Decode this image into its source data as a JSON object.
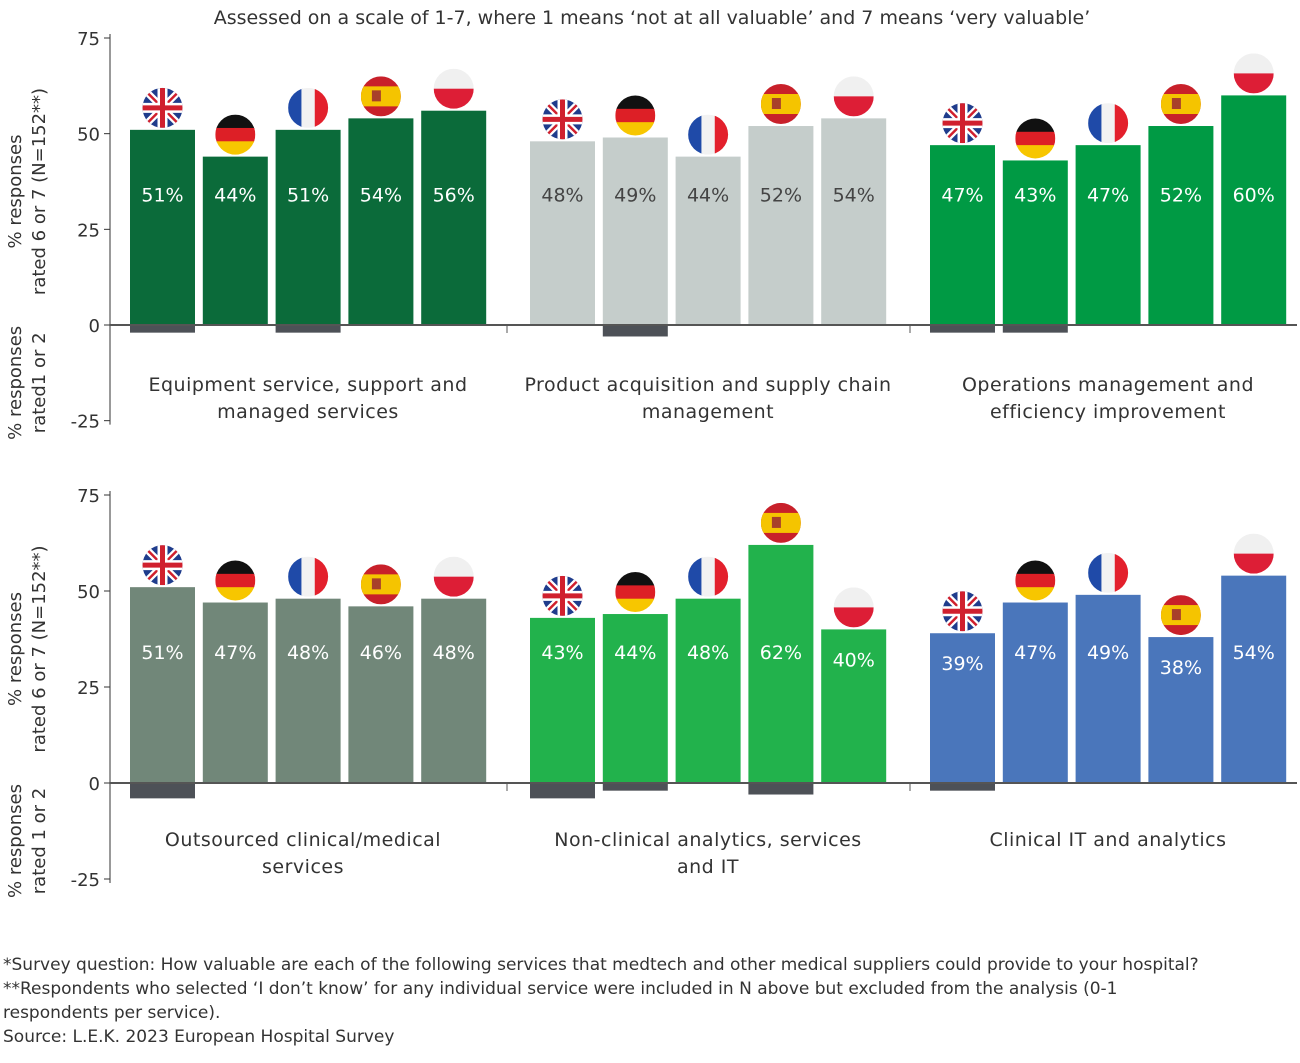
{
  "chart_data": [
    {
      "type": "bar",
      "title": "Assessed on a scale of 1-7, where 1 means ‘not at all valuable’ and 7 means ‘very valuable’",
      "ylabel_positive": "% responses rated 6 or 7 (N=152**)",
      "ylabel_negative": "% responses rated1 or 2",
      "yticks": [
        75,
        50,
        25,
        0,
        -25
      ],
      "ylim": [
        -25,
        75
      ],
      "categories": [
        "UK",
        "Germany",
        "France",
        "Spain",
        "Poland"
      ],
      "flag_icons": [
        "uk-flag-icon",
        "germany-flag-icon",
        "france-flag-icon",
        "spain-flag-icon",
        "poland-flag-icon"
      ],
      "negative_color": "#4d5157",
      "groups": [
        {
          "label": "Equipment service, support and managed services",
          "color": "#0b6b3a",
          "values": [
            51,
            44,
            51,
            54,
            56
          ],
          "labels": [
            "51%",
            "44%",
            "51%",
            "54%",
            "56%"
          ],
          "negative": [
            2,
            0,
            2,
            0,
            0
          ]
        },
        {
          "label": "Product acquisition and supply chain management",
          "color": "#c5cdcb",
          "text_color": "#444",
          "values": [
            48,
            49,
            44,
            52,
            54
          ],
          "labels": [
            "48%",
            "49%",
            "44%",
            "52%",
            "54%"
          ],
          "negative": [
            0,
            3,
            0,
            0,
            0
          ]
        },
        {
          "label": "Operations management and efficiency improvement",
          "color": "#009a44",
          "values": [
            47,
            43,
            47,
            52,
            60
          ],
          "labels": [
            "47%",
            "43%",
            "47%",
            "52%",
            "60%"
          ],
          "negative": [
            2,
            2,
            0,
            0,
            0
          ]
        }
      ]
    },
    {
      "type": "bar",
      "ylabel_positive": "% responses rated 6 or 7 (N=152**)",
      "ylabel_negative": "% responses rated 1 or 2",
      "yticks": [
        75,
        50,
        25,
        0,
        -25
      ],
      "ylim": [
        -25,
        75
      ],
      "categories": [
        "UK",
        "Germany",
        "France",
        "Spain",
        "Poland"
      ],
      "groups": [
        {
          "label": "Outsourced clinical/medical services",
          "color": "#718779",
          "values": [
            51,
            47,
            48,
            46,
            48
          ],
          "labels": [
            "51%",
            "47%",
            "48%",
            "46%",
            "48%"
          ],
          "negative": [
            4,
            0,
            0,
            0,
            0
          ]
        },
        {
          "label": "Non-clinical analytics, services and IT",
          "color": "#22b24c",
          "values": [
            43,
            44,
            48,
            62,
            40
          ],
          "labels": [
            "43%",
            "44%",
            "48%",
            "62%",
            "40%"
          ],
          "negative": [
            4,
            2,
            0,
            3,
            0
          ]
        },
        {
          "label": "Clinical IT and analytics",
          "color": "#4a76bb",
          "values": [
            39,
            47,
            49,
            38,
            54
          ],
          "labels": [
            "39%",
            "47%",
            "49%",
            "38%",
            "54%"
          ],
          "negative": [
            2,
            0,
            0,
            0,
            0
          ]
        }
      ]
    }
  ],
  "footnotes": {
    "survey": "*Survey question: How valuable are each of the following services that medtech and other medical suppliers could provide to your hospital?",
    "respondents": "**Respondents who selected ‘I don’t know’ for any individual service were included in N above but excluded from the analysis (0-1 respondents per service).",
    "source": "Source: L.E.K. 2023 European Hospital Survey"
  }
}
